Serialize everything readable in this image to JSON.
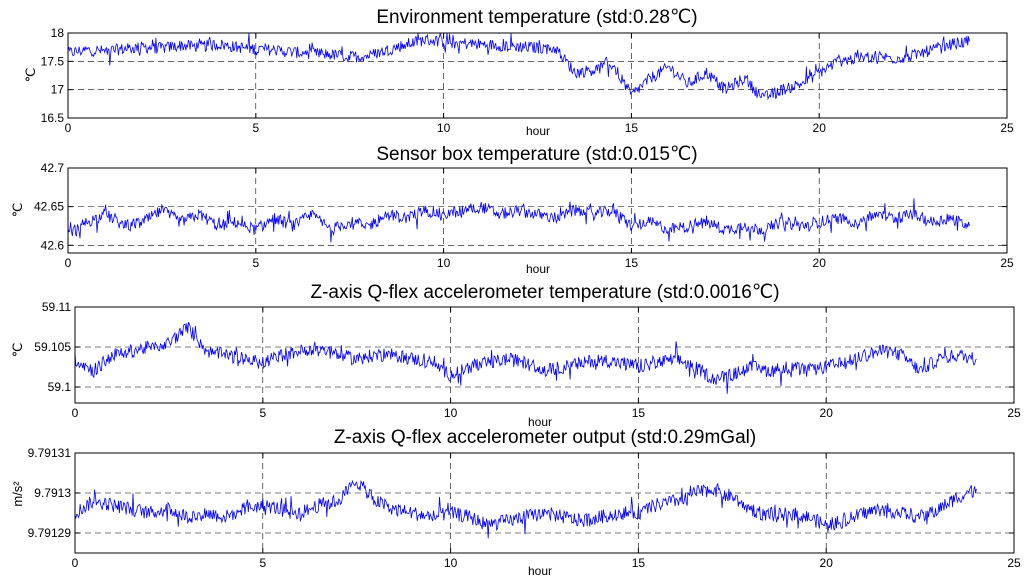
{
  "colors": {
    "series": "#0000ff",
    "grid": "#000000",
    "axis": "#000000",
    "background": "#ffffff"
  },
  "chart_data": [
    {
      "type": "line",
      "title": "Environment temperature (std:0.28℃)",
      "xlabel": "hour",
      "ylabel": "℃",
      "xlim": [
        0,
        25
      ],
      "ylim": [
        16.5,
        18
      ],
      "xticks": [
        0,
        5,
        10,
        15,
        20,
        25
      ],
      "yticks": [
        16.5,
        17,
        17.5,
        18
      ],
      "xtick_labels": [
        "0",
        "5",
        "10",
        "15",
        "20",
        "25"
      ],
      "ytick_labels": [
        "16.5",
        "17",
        "17.5",
        "18"
      ],
      "grid": true,
      "series": [
        {
          "x": [
            0,
            0.5,
            1,
            1.5,
            2,
            2.5,
            3,
            3.5,
            4,
            4.5,
            5,
            5.5,
            6,
            6.5,
            7,
            7.5,
            8,
            8.5,
            9,
            9.5,
            10,
            10.5,
            11,
            11.5,
            12,
            12.5,
            13,
            13.5,
            14,
            14.5,
            15,
            15.5,
            16,
            16.5,
            17,
            17.5,
            18,
            18.5,
            19,
            19.5,
            20,
            20.5,
            21,
            21.5,
            22,
            22.5,
            23,
            23.5,
            24
          ],
          "y": [
            17.65,
            17.7,
            17.68,
            17.72,
            17.75,
            17.73,
            17.78,
            17.76,
            17.8,
            17.75,
            17.72,
            17.7,
            17.66,
            17.64,
            17.62,
            17.58,
            17.6,
            17.7,
            17.8,
            17.88,
            17.85,
            17.82,
            17.8,
            17.78,
            17.76,
            17.74,
            17.72,
            17.3,
            17.35,
            17.45,
            16.9,
            17.2,
            17.4,
            17.1,
            17.3,
            17.0,
            17.2,
            16.85,
            17.0,
            17.1,
            17.3,
            17.5,
            17.55,
            17.6,
            17.55,
            17.6,
            17.7,
            17.8,
            17.85
          ]
        }
      ]
    },
    {
      "type": "line",
      "title": "Sensor box temperature (std:0.015℃)",
      "xlabel": "hour",
      "ylabel": "℃",
      "xlim": [
        0,
        25
      ],
      "ylim": [
        42.59,
        42.7
      ],
      "xticks": [
        0,
        5,
        10,
        15,
        20,
        25
      ],
      "yticks": [
        42.6,
        42.65,
        42.7
      ],
      "xtick_labels": [
        "0",
        "5",
        "10",
        "15",
        "20",
        "25"
      ],
      "ytick_labels": [
        "42.6",
        "42.65",
        "42.7"
      ],
      "grid": true,
      "series": [
        {
          "x": [
            0,
            0.5,
            1,
            1.5,
            2,
            2.5,
            3,
            3.5,
            4,
            4.5,
            5,
            5.5,
            6,
            6.5,
            7,
            7.5,
            8,
            8.5,
            9,
            9.5,
            10,
            10.5,
            11,
            11.5,
            12,
            12.5,
            13,
            13.5,
            14,
            14.5,
            15,
            15.5,
            16,
            16.5,
            17,
            17.5,
            18,
            18.5,
            19,
            19.5,
            20,
            20.5,
            21,
            21.5,
            22,
            22.5,
            23,
            23.5,
            24
          ],
          "y": [
            42.615,
            42.63,
            42.64,
            42.625,
            42.63,
            42.645,
            42.63,
            42.64,
            42.625,
            42.63,
            42.62,
            42.635,
            42.625,
            42.64,
            42.62,
            42.63,
            42.625,
            42.64,
            42.635,
            42.645,
            42.64,
            42.645,
            42.65,
            42.64,
            42.645,
            42.64,
            42.635,
            42.645,
            42.64,
            42.645,
            42.625,
            42.63,
            42.62,
            42.625,
            42.63,
            42.62,
            42.625,
            42.62,
            42.63,
            42.625,
            42.63,
            42.635,
            42.63,
            42.64,
            42.635,
            42.64,
            42.63,
            42.635,
            42.625
          ]
        }
      ]
    },
    {
      "type": "line",
      "title": "Z-axis Q-flex accelerometer temperature (std:0.0016℃)",
      "xlabel": "hour",
      "ylabel": "℃",
      "xlim": [
        0,
        25
      ],
      "ylim": [
        59.098,
        59.11
      ],
      "xticks": [
        0,
        5,
        10,
        15,
        20,
        25
      ],
      "yticks": [
        59.1,
        59.105,
        59.11
      ],
      "xtick_labels": [
        "0",
        "5",
        "10",
        "15",
        "20",
        "25"
      ],
      "ytick_labels": [
        "59.1",
        "59.105",
        "59.11"
      ],
      "grid": true,
      "series": [
        {
          "x": [
            0,
            0.5,
            1,
            1.5,
            2,
            2.5,
            3,
            3.5,
            4,
            4.5,
            5,
            5.5,
            6,
            6.5,
            7,
            7.5,
            8,
            8.5,
            9,
            9.5,
            10,
            10.5,
            11,
            11.5,
            12,
            12.5,
            13,
            13.5,
            14,
            14.5,
            15,
            15.5,
            16,
            16.5,
            17,
            17.5,
            18,
            18.5,
            19,
            19.5,
            20,
            20.5,
            21,
            21.5,
            22,
            22.5,
            23,
            23.5,
            24
          ],
          "y": [
            59.1035,
            59.102,
            59.104,
            59.1045,
            59.105,
            59.1055,
            59.1075,
            59.1045,
            59.104,
            59.1035,
            59.103,
            59.104,
            59.1045,
            59.105,
            59.104,
            59.1035,
            59.104,
            59.104,
            59.1035,
            59.103,
            59.1015,
            59.1025,
            59.103,
            59.1035,
            59.103,
            59.102,
            59.1025,
            59.103,
            59.1035,
            59.103,
            59.1025,
            59.103,
            59.1035,
            59.1025,
            59.101,
            59.1015,
            59.1025,
            59.102,
            59.1025,
            59.102,
            59.1025,
            59.103,
            59.104,
            59.1045,
            59.104,
            59.102,
            59.1035,
            59.104,
            59.1035
          ]
        }
      ]
    },
    {
      "type": "line",
      "title": "Z-axis Q-flex accelerometer output (std:0.29mGal)",
      "xlabel": "hour",
      "ylabel": "m/s²",
      "xlim": [
        0,
        25
      ],
      "ylim": [
        9.791285,
        9.79131
      ],
      "xticks": [
        0,
        5,
        10,
        15,
        20,
        25
      ],
      "yticks": [
        9.79129,
        9.7913,
        9.79131
      ],
      "xtick_labels": [
        "0",
        "5",
        "10",
        "15",
        "20",
        "25"
      ],
      "ytick_labels": [
        "9.79129",
        "9.7913",
        "9.79131"
      ],
      "grid": true,
      "series": [
        {
          "x": [
            0,
            0.5,
            1,
            1.5,
            2,
            2.5,
            3,
            3.5,
            4,
            4.5,
            5,
            5.5,
            6,
            6.5,
            7,
            7.5,
            8,
            8.5,
            9,
            9.5,
            10,
            10.5,
            11,
            11.5,
            12,
            12.5,
            13,
            13.5,
            14,
            14.5,
            15,
            15.5,
            16,
            16.5,
            17,
            17.5,
            18,
            18.5,
            19,
            19.5,
            20,
            20.5,
            21,
            21.5,
            22,
            22.5,
            23,
            23.5,
            24
          ],
          "y": [
            9.791295,
            9.791298,
            9.791297,
            9.791296,
            9.791295,
            9.791296,
            9.791294,
            9.791295,
            9.791294,
            9.791296,
            9.791297,
            9.791296,
            9.791295,
            9.791297,
            9.791298,
            9.791303,
            9.791298,
            9.791296,
            9.791295,
            9.791294,
            9.791295,
            9.791294,
            9.791292,
            9.791293,
            9.791294,
            9.791295,
            9.791294,
            9.791293,
            9.791294,
            9.791295,
            9.791295,
            9.791297,
            9.791298,
            9.7913,
            9.791301,
            9.791299,
            9.791296,
            9.791294,
            9.791295,
            9.791294,
            9.791292,
            9.791293,
            9.791295,
            9.791296,
            9.791295,
            9.791294,
            9.791296,
            9.791299,
            9.791301
          ]
        }
      ]
    }
  ]
}
